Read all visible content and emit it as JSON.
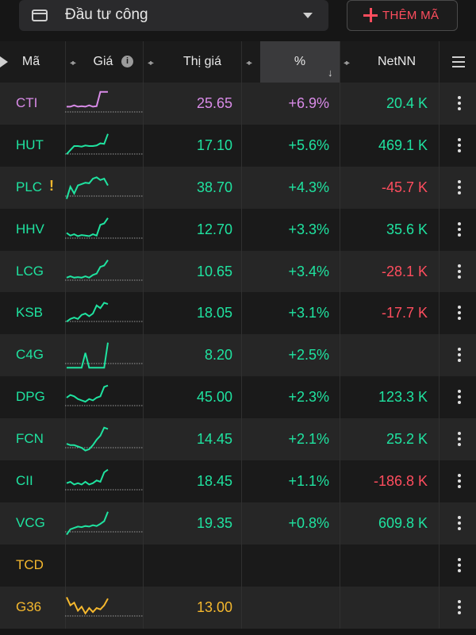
{
  "topbar": {
    "watchlist_label": "Đầu tư công",
    "add_button_label": "THÊM MÃ"
  },
  "header": {
    "symbol": "Mã",
    "price": "Giá",
    "market_price": "Thị giá",
    "percent": "%",
    "netnn": "NetNN"
  },
  "colors": {
    "up": "#1fe3a0",
    "down": "#ff4d5e",
    "ceiling": "#d98be8",
    "reference": "#f5b82e",
    "accent": "#ff4d5e"
  },
  "rows": [
    {
      "symbol": "CTI",
      "price": "25.65",
      "percent": "+6.9%",
      "netnn": "20.4 K",
      "status": "ceiling",
      "net_status": "up",
      "warning": "",
      "spark": [
        0.4,
        0.4,
        0.45,
        0.4,
        0.42,
        0.4,
        0.45,
        0.4,
        0.42,
        0.95,
        0.95,
        0.95
      ]
    },
    {
      "symbol": "HUT",
      "price": "17.10",
      "percent": "+5.6%",
      "netnn": "469.1 K",
      "status": "up",
      "net_status": "up",
      "warning": "",
      "spark": [
        0.2,
        0.35,
        0.5,
        0.5,
        0.48,
        0.52,
        0.5,
        0.5,
        0.52,
        0.6,
        0.58,
        0.95
      ]
    },
    {
      "symbol": "PLC",
      "price": "38.70",
      "percent": "+4.3%",
      "netnn": "-45.7 K",
      "status": "up",
      "net_status": "down",
      "warning": "!",
      "spark": [
        0.1,
        0.55,
        0.3,
        0.6,
        0.65,
        0.7,
        0.68,
        0.85,
        0.9,
        0.8,
        0.85,
        0.6
      ]
    },
    {
      "symbol": "HHV",
      "price": "12.70",
      "percent": "+3.3%",
      "netnn": "35.6 K",
      "status": "up",
      "net_status": "up",
      "warning": "",
      "spark": [
        0.4,
        0.3,
        0.35,
        0.28,
        0.32,
        0.3,
        0.28,
        0.35,
        0.3,
        0.7,
        0.75,
        0.95
      ]
    },
    {
      "symbol": "LCG",
      "price": "10.65",
      "percent": "+3.4%",
      "netnn": "-28.1 K",
      "status": "up",
      "net_status": "down",
      "warning": "",
      "spark": [
        0.3,
        0.35,
        0.3,
        0.32,
        0.3,
        0.35,
        0.3,
        0.4,
        0.45,
        0.7,
        0.75,
        0.95
      ]
    },
    {
      "symbol": "KSB",
      "price": "18.05",
      "percent": "+3.1%",
      "netnn": "-17.7 K",
      "status": "up",
      "net_status": "down",
      "warning": "",
      "spark": [
        0.2,
        0.3,
        0.35,
        0.3,
        0.45,
        0.5,
        0.4,
        0.5,
        0.8,
        0.7,
        0.9,
        0.85
      ]
    },
    {
      "symbol": "C4G",
      "price": "8.20",
      "percent": "+2.5%",
      "netnn": "",
      "status": "up",
      "net_status": "up",
      "warning": "",
      "spark": [
        0.05,
        0.05,
        0.05,
        0.05,
        0.05,
        0.6,
        0.05,
        0.05,
        0.05,
        0.05,
        0.05,
        0.98
      ]
    },
    {
      "symbol": "DPG",
      "price": "45.00",
      "percent": "+2.3%",
      "netnn": "123.3 K",
      "status": "up",
      "net_status": "up",
      "warning": "",
      "spark": [
        0.5,
        0.6,
        0.55,
        0.45,
        0.4,
        0.35,
        0.45,
        0.4,
        0.5,
        0.55,
        0.9,
        0.95
      ]
    },
    {
      "symbol": "FCN",
      "price": "14.45",
      "percent": "+2.1%",
      "netnn": "25.2 K",
      "status": "up",
      "net_status": "up",
      "warning": "",
      "spark": [
        0.35,
        0.3,
        0.3,
        0.25,
        0.2,
        0.1,
        0.15,
        0.3,
        0.5,
        0.65,
        0.95,
        0.9
      ]
    },
    {
      "symbol": "CII",
      "price": "18.45",
      "percent": "+1.1%",
      "netnn": "-186.8 K",
      "status": "up",
      "net_status": "down",
      "warning": "",
      "spark": [
        0.45,
        0.5,
        0.4,
        0.45,
        0.4,
        0.5,
        0.4,
        0.45,
        0.55,
        0.5,
        0.85,
        0.95
      ]
    },
    {
      "symbol": "VCG",
      "price": "19.35",
      "percent": "+0.8%",
      "netnn": "609.8 K",
      "status": "up",
      "net_status": "up",
      "warning": "",
      "spark": [
        0.1,
        0.3,
        0.35,
        0.4,
        0.38,
        0.42,
        0.4,
        0.45,
        0.42,
        0.5,
        0.6,
        0.95
      ]
    },
    {
      "symbol": "TCD",
      "price": "",
      "percent": "",
      "netnn": "",
      "status": "reference",
      "net_status": "up",
      "warning": "",
      "spark": []
    },
    {
      "symbol": "G36",
      "price": "13.00",
      "percent": "",
      "netnn": "",
      "status": "reference",
      "net_status": "up",
      "warning": "",
      "spark": [
        0.9,
        0.6,
        0.7,
        0.4,
        0.55,
        0.3,
        0.5,
        0.35,
        0.5,
        0.45,
        0.6,
        0.85
      ]
    }
  ]
}
